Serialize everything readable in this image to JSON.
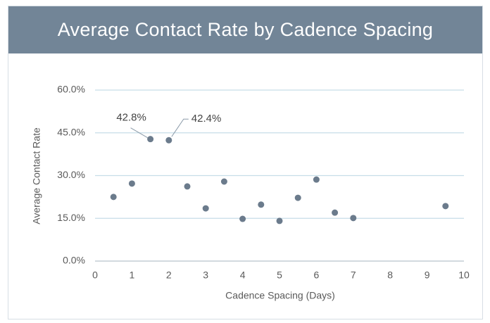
{
  "chart_data": {
    "type": "scatter",
    "title": "Average Contact Rate by Cadence Spacing",
    "x_label": "Cadence Spacing (Days)",
    "y_label": "Average Contact Rate",
    "x": [
      0.5,
      1,
      1.5,
      2,
      2.5,
      3,
      3.5,
      4,
      4.5,
      5,
      5.5,
      6,
      6.5,
      7,
      9.5
    ],
    "values": [
      22.5,
      27.2,
      42.8,
      42.4,
      26.2,
      18.5,
      27.9,
      14.8,
      19.8,
      14.1,
      22.2,
      28.6,
      17.0,
      15.1,
      19.3
    ],
    "value_labels": [
      null,
      null,
      "42.8%",
      "42.4%",
      null,
      null,
      null,
      null,
      null,
      null,
      null,
      null,
      null,
      null,
      null
    ],
    "color": "#6b7b8c",
    "xlim": [
      0,
      10
    ],
    "xticks": [
      0,
      1,
      2,
      3,
      4,
      5,
      6,
      7,
      8,
      9,
      10
    ],
    "ylim": [
      0,
      60
    ],
    "yticks": [
      {
        "value": 0,
        "label": "0.0%"
      },
      {
        "value": 15,
        "label": "15.0%"
      },
      {
        "value": 30,
        "label": "30.0%"
      },
      {
        "value": 45,
        "label": "45.0%"
      },
      {
        "value": 60,
        "label": "60.0%"
      }
    ],
    "grid": true
  }
}
